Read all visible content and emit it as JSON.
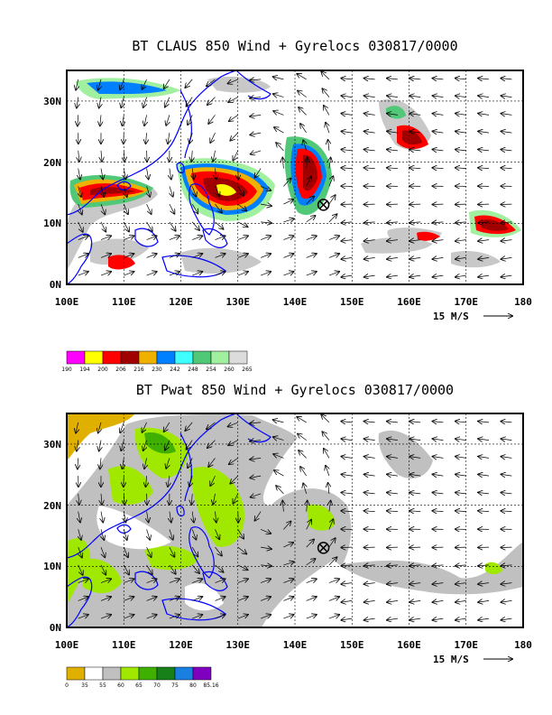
{
  "panel1": {
    "title": "BT CLAUS 850 Wind + Gyrelocs 030817/0000",
    "x_ticks": [
      "100E",
      "110E",
      "120E",
      "130E",
      "140E",
      "150E",
      "160E",
      "170E",
      "180"
    ],
    "y_ticks": [
      "0N",
      "10N",
      "20N",
      "30N"
    ],
    "ref_vector_label": "15 M/S",
    "colorbar": {
      "labels": [
        "190",
        "194",
        "200",
        "206",
        "216",
        "230",
        "242",
        "248",
        "254",
        "260",
        "265"
      ],
      "colors": [
        "#ff00ff",
        "#ffff00",
        "#ff0000",
        "#a00000",
        "#f0b000",
        "#0080ff",
        "#40ffff",
        "#50c878",
        "#a0f0a0",
        "#dcdcdc"
      ]
    },
    "gyre_marker": {
      "lon": 145,
      "lat": 13.5
    }
  },
  "panel2": {
    "title": "BT Pwat 850 Wind + Gyrelocs 030817/0000",
    "x_ticks": [
      "100E",
      "110E",
      "120E",
      "130E",
      "140E",
      "150E",
      "160E",
      "170E",
      "180"
    ],
    "y_ticks": [
      "0N",
      "10N",
      "20N",
      "30N"
    ],
    "ref_vector_label": "15 M/S",
    "colorbar": {
      "labels": [
        "0",
        "35",
        "55",
        "60",
        "65",
        "70",
        "75",
        "80",
        "85.16"
      ],
      "colors": [
        "#e0b000",
        "#ffffff",
        "#c0c0c0",
        "#a0e800",
        "#40b000",
        "#188018",
        "#1a80e0",
        "#8000c0"
      ]
    },
    "gyre_marker": {
      "lon": 145,
      "lat": 13.5
    }
  },
  "map": {
    "lon_range": [
      100,
      180
    ],
    "lat_range": [
      0,
      35
    ],
    "grid_lons": [
      110,
      120,
      130,
      140,
      150,
      160,
      170
    ],
    "grid_lats": [
      10,
      20,
      30
    ]
  }
}
